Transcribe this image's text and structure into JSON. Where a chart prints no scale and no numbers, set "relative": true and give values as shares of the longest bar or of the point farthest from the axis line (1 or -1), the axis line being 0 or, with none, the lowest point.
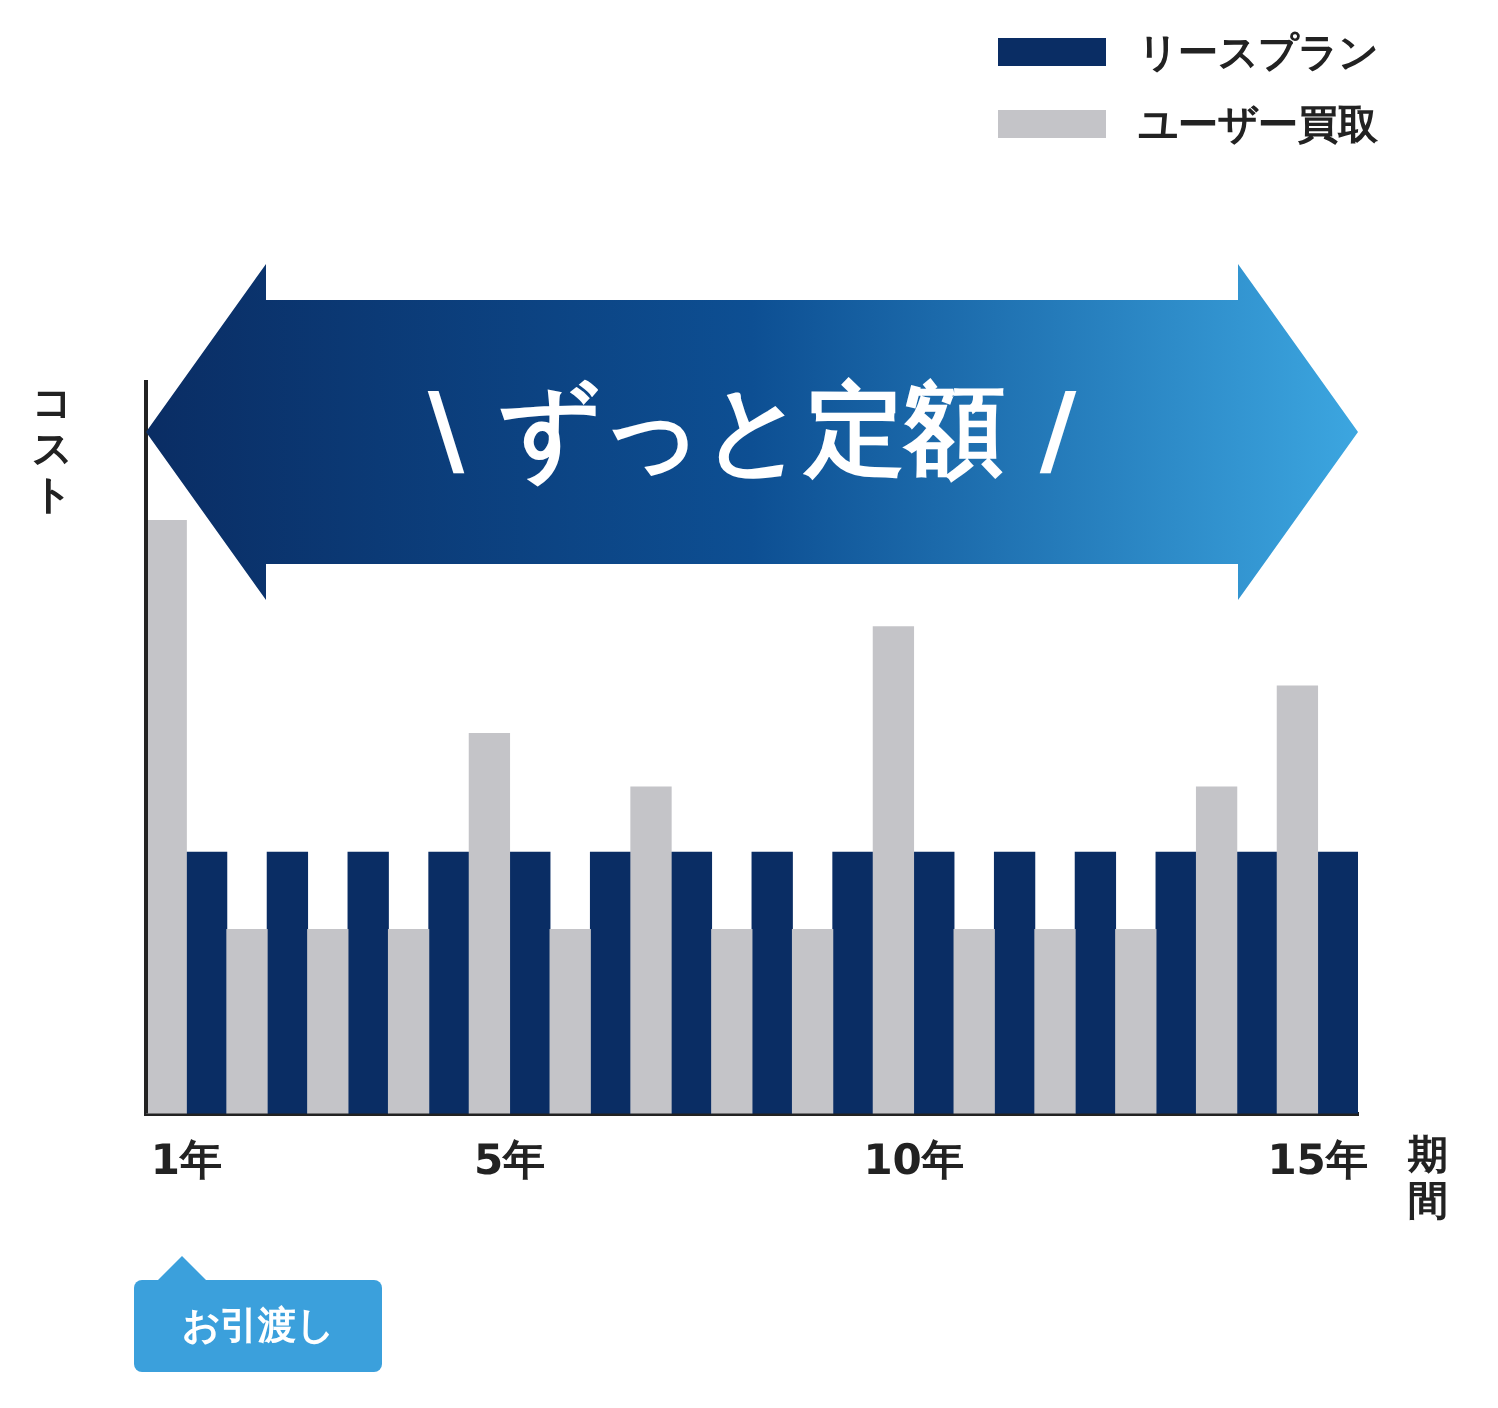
{
  "chart_data": {
    "type": "bar",
    "relative": true,
    "xlabel": "期間",
    "ylabel": "コスト",
    "legend": "top right",
    "grid": false,
    "categories": [
      "1年",
      null,
      null,
      null,
      "5年",
      null,
      null,
      null,
      null,
      "10年",
      null,
      null,
      null,
      null,
      "15年"
    ],
    "series": [
      {
        "name": "ユーザー買取",
        "color": "#c4c4c8",
        "values": [
          1.0,
          0.31,
          0.31,
          0.31,
          0.64,
          0.31,
          0.55,
          0.31,
          0.31,
          0.82,
          0.31,
          0.31,
          0.31,
          0.55,
          0.72
        ]
      },
      {
        "name": "リースプラン",
        "color": "#0a2d64",
        "values": [
          0.44,
          0.44,
          0.44,
          0.44,
          0.44,
          0.44,
          0.44,
          0.44,
          0.44,
          0.44,
          0.44,
          0.44,
          0.44,
          0.44,
          0.44
        ]
      }
    ],
    "annotations": [
      "\\ ずっと定額 /",
      "お引渡し"
    ]
  }
}
